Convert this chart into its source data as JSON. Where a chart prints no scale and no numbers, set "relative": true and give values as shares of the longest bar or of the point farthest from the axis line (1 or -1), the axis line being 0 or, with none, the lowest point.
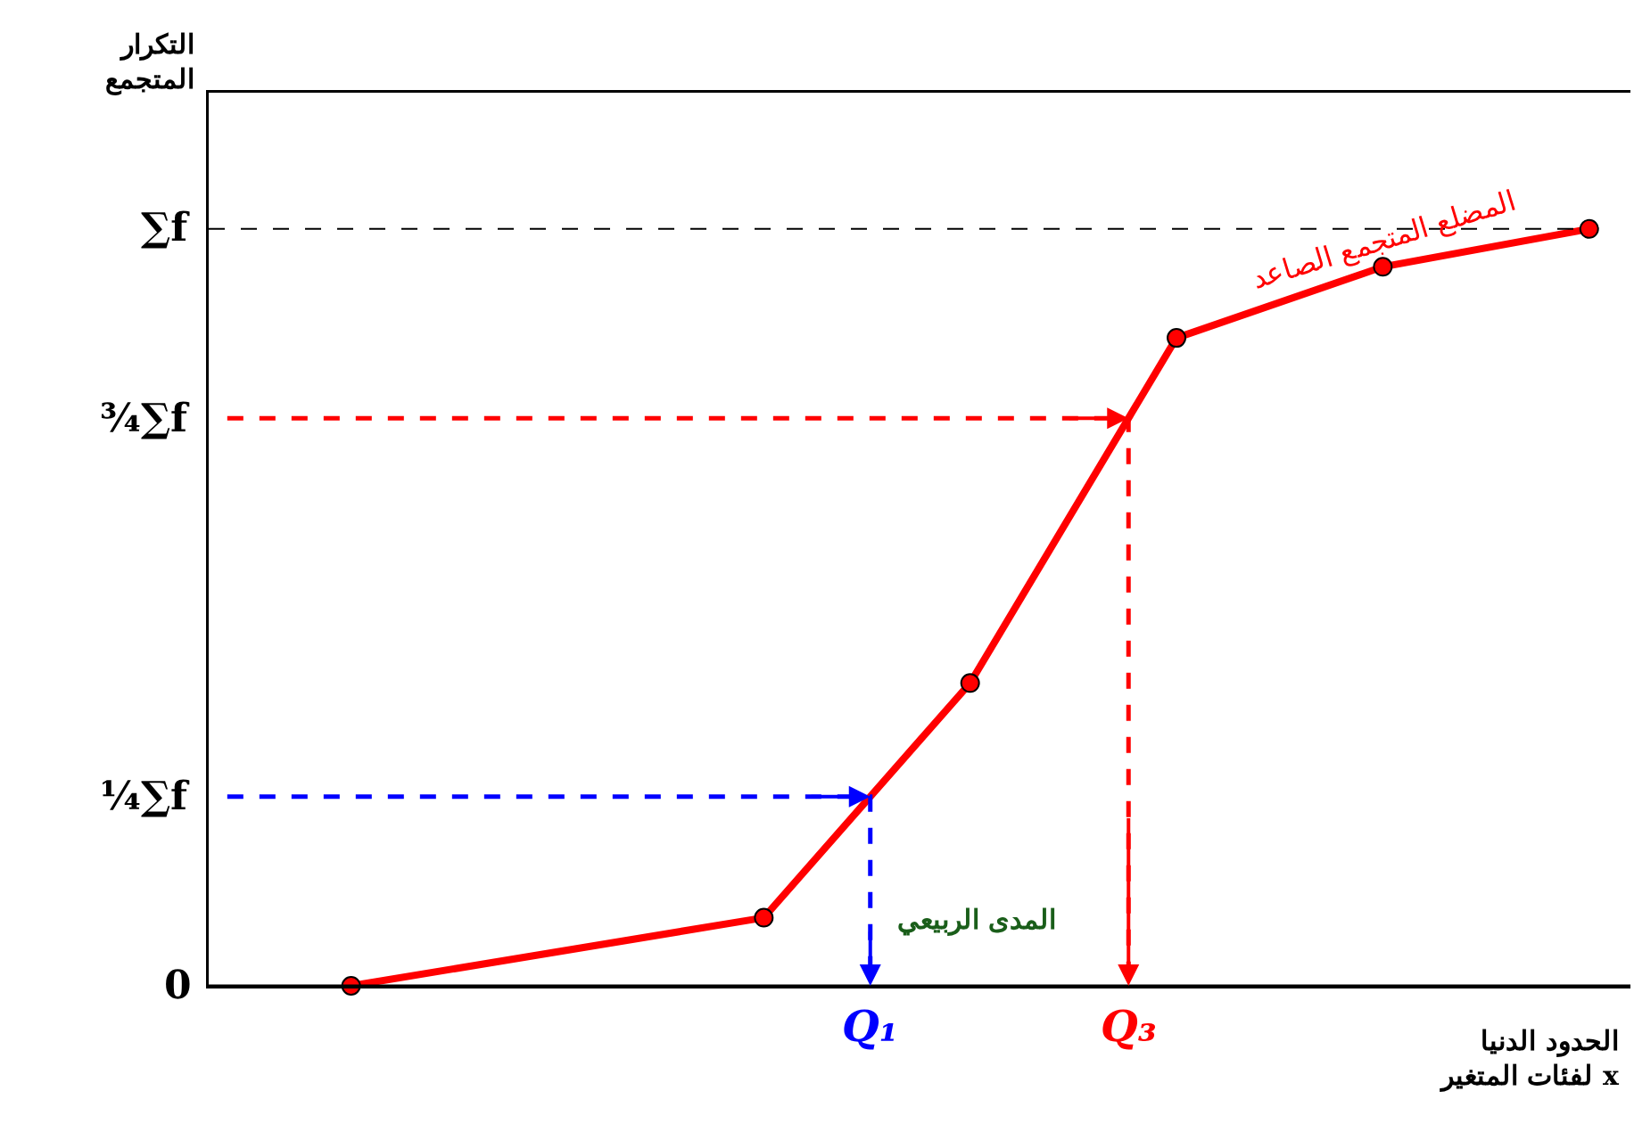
{
  "chart_data": {
    "type": "line",
    "relative": true,
    "xlabel": "الحدود الدنيا لفئات المتغير x",
    "categories": [
      null,
      null,
      null,
      null,
      null,
      null,
      null
    ],
    "grid": false,
    "legend": false,
    "series": [
      {
        "name": "المضلع المتجمع الصاعد",
        "color": "#ff0000",
        "values": [
          0,
          null,
          0.09,
          0.4,
          0.856,
          0.95,
          1
        ],
        "marker": "circle",
        "line_style": "solid"
      }
    ],
    "ref_lines": [
      {
        "axis": "y",
        "value": 1,
        "label": "∑f",
        "color": "#000000",
        "line_style": "dashed"
      },
      {
        "axis": "y",
        "value": 0.75,
        "label": "¾∑f",
        "color": "#ff0000",
        "line_style": "dashed"
      },
      {
        "axis": "y",
        "value": 0.25,
        "label": "¼∑f",
        "color": "#0000ff",
        "line_style": "dashed"
      },
      {
        "axis": "y",
        "value": 0,
        "label": "0",
        "color": "#000000",
        "line_style": "solid"
      }
    ],
    "annotations": [
      "Q₃",
      "Q₁",
      "المدى الربيعي",
      "التكرار المتجمع"
    ]
  }
}
